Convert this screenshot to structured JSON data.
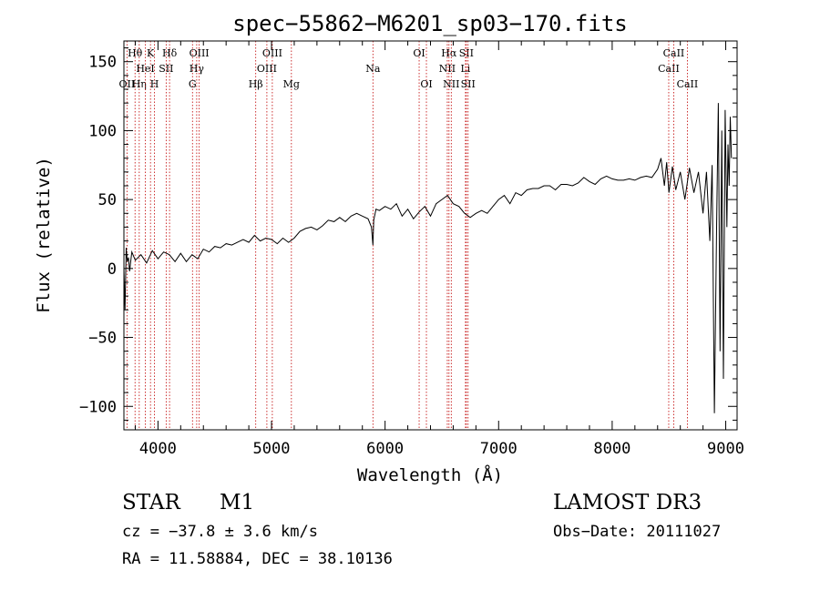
{
  "chart_data": {
    "type": "line",
    "title": "spec−55862−M6201_sp03−170.fits",
    "xlabel": "Wavelength (Å)",
    "ylabel": "Flux (relative)",
    "xlim": [
      3700,
      9100
    ],
    "ylim": [
      -117,
      165
    ],
    "xticks": [
      4000,
      5000,
      6000,
      7000,
      8000,
      9000
    ],
    "xtick_labels": [
      "4000",
      "5000",
      "6000",
      "7000",
      "8000",
      "9000"
    ],
    "yticks": [
      -100,
      -50,
      0,
      50,
      100,
      150
    ],
    "ytick_labels": [
      "−100",
      "−50",
      "0",
      "50",
      "100",
      "150"
    ],
    "series": [
      {
        "name": "flux",
        "x": [
          3700,
          3710,
          3720,
          3730,
          3740,
          3750,
          3770,
          3800,
          3850,
          3900,
          3950,
          4000,
          4050,
          4100,
          4150,
          4200,
          4250,
          4300,
          4350,
          4400,
          4450,
          4500,
          4550,
          4600,
          4650,
          4700,
          4750,
          4800,
          4850,
          4900,
          4950,
          5000,
          5050,
          5100,
          5150,
          5200,
          5250,
          5300,
          5350,
          5400,
          5450,
          5500,
          5550,
          5600,
          5650,
          5700,
          5750,
          5800,
          5850,
          5880,
          5893,
          5900,
          5920,
          5950,
          6000,
          6050,
          6100,
          6150,
          6200,
          6250,
          6300,
          6350,
          6400,
          6450,
          6500,
          6550,
          6600,
          6650,
          6700,
          6750,
          6800,
          6850,
          6900,
          6950,
          7000,
          7050,
          7100,
          7150,
          7200,
          7250,
          7300,
          7350,
          7400,
          7450,
          7500,
          7550,
          7600,
          7650,
          7700,
          7750,
          7800,
          7850,
          7900,
          7950,
          8000,
          8050,
          8100,
          8150,
          8200,
          8250,
          8300,
          8350,
          8400,
          8430,
          8460,
          8480,
          8500,
          8530,
          8560,
          8600,
          8640,
          8680,
          8720,
          8760,
          8800,
          8830,
          8860,
          8880,
          8900,
          8920,
          8935,
          8950,
          8965,
          8980,
          8995,
          9010,
          9020,
          9030,
          9040,
          9050
        ],
        "values": [
          0,
          -30,
          15,
          5,
          8,
          -2,
          12,
          6,
          10,
          4,
          13,
          7,
          12,
          10,
          5,
          11,
          5,
          10,
          7,
          14,
          12,
          16,
          15,
          18,
          17,
          19,
          21,
          19,
          24,
          20,
          22,
          21,
          18,
          22,
          19,
          22,
          27,
          29,
          30,
          28,
          31,
          35,
          34,
          37,
          34,
          38,
          40,
          38,
          36,
          30,
          17,
          35,
          43,
          42,
          45,
          43,
          47,
          38,
          43,
          36,
          41,
          45,
          38,
          47,
          50,
          53,
          47,
          45,
          40,
          37,
          40,
          42,
          40,
          45,
          50,
          53,
          47,
          55,
          53,
          57,
          58,
          58,
          60,
          60,
          57,
          61,
          61,
          60,
          62,
          66,
          63,
          61,
          65,
          67,
          65,
          64,
          64,
          65,
          64,
          66,
          67,
          66,
          72,
          80,
          60,
          77,
          55,
          74,
          57,
          70,
          50,
          73,
          55,
          70,
          40,
          70,
          20,
          75,
          -105,
          35,
          120,
          -60,
          100,
          -80,
          115,
          30,
          90,
          60,
          110,
          80
        ]
      }
    ],
    "lines": [
      {
        "name": "OII",
        "wl": 3727,
        "label": "OII",
        "pos": "top",
        "row": 2
      },
      {
        "name": "H-theta",
        "wl": 3798,
        "label": "Hθ",
        "pos": "top",
        "row": 0
      },
      {
        "name": "H-eta",
        "wl": 3835,
        "label": "Hη",
        "pos": "top",
        "row": 2
      },
      {
        "name": "HeI",
        "wl": 3889,
        "label": "HeI",
        "pos": "top",
        "row": 1
      },
      {
        "name": "K",
        "wl": 3934,
        "label": "K",
        "pos": "top",
        "row": 0
      },
      {
        "name": "H",
        "wl": 3969,
        "label": "H",
        "pos": "top",
        "row": 2
      },
      {
        "name": "SII-4072",
        "wl": 4072,
        "label": "SII",
        "pos": "top",
        "row": 1
      },
      {
        "name": "H-delta",
        "wl": 4102,
        "label": "Hδ",
        "pos": "top",
        "row": 0
      },
      {
        "name": "G",
        "wl": 4304,
        "label": "G",
        "pos": "top",
        "row": 2
      },
      {
        "name": "H-gamma",
        "wl": 4341,
        "label": "Hγ",
        "pos": "top",
        "row": 1
      },
      {
        "name": "OIII-4363",
        "wl": 4363,
        "label": "OIII",
        "pos": "top",
        "row": 0
      },
      {
        "name": "H-beta",
        "wl": 4861,
        "label": "Hβ",
        "pos": "top",
        "row": 2
      },
      {
        "name": "OIII-4959",
        "wl": 4959,
        "label": "OIII",
        "pos": "top",
        "row": 1
      },
      {
        "name": "OIII-5007",
        "wl": 5007,
        "label": "OIII",
        "pos": "top",
        "row": 0
      },
      {
        "name": "Mg",
        "wl": 5175,
        "label": "Mg",
        "pos": "top",
        "row": 2
      },
      {
        "name": "Na",
        "wl": 5893,
        "label": "Na",
        "pos": "top",
        "row": 1
      },
      {
        "name": "OI-6300",
        "wl": 6300,
        "label": "OI",
        "pos": "top",
        "row": 0
      },
      {
        "name": "OI-6364",
        "wl": 6364,
        "label": "OI",
        "pos": "top",
        "row": 2
      },
      {
        "name": "NII-6548",
        "wl": 6548,
        "label": "NII",
        "pos": "top",
        "row": 1
      },
      {
        "name": "H-alpha",
        "wl": 6563,
        "label": "Hα",
        "pos": "top",
        "row": 0
      },
      {
        "name": "NII-6583",
        "wl": 6583,
        "label": "NII",
        "pos": "top",
        "row": 2
      },
      {
        "name": "LiI",
        "wl": 6708,
        "label": "Li",
        "pos": "top",
        "row": 1
      },
      {
        "name": "SII-6716",
        "wl": 6716,
        "label": "SII",
        "pos": "top",
        "row": 0
      },
      {
        "name": "SII-6731",
        "wl": 6731,
        "label": "SII",
        "pos": "top",
        "row": 2
      },
      {
        "name": "CaII-8498",
        "wl": 8498,
        "label": "CaII",
        "pos": "top",
        "row": 1
      },
      {
        "name": "CaII-8542",
        "wl": 8542,
        "label": "CaII",
        "pos": "top",
        "row": 0
      },
      {
        "name": "CaII-8662",
        "wl": 8662,
        "label": "CaII",
        "pos": "top",
        "row": 2
      }
    ]
  },
  "info": {
    "object_type": "STAR",
    "subclass": "M1",
    "survey": "LAMOST DR3",
    "redshift": "cz = −37.8 ± 3.6 km/s",
    "obs_date": "Obs−Date: 20111027",
    "coords": "RA =  11.58884, DEC =  38.10136"
  }
}
